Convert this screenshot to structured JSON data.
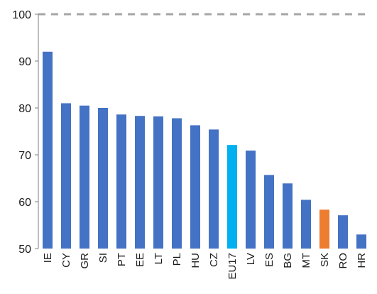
{
  "chart_data": {
    "type": "bar",
    "categories": [
      "IE",
      "CY",
      "GR",
      "SI",
      "PT",
      "EE",
      "LT",
      "PL",
      "HU",
      "CZ",
      "EU17",
      "LV",
      "ES",
      "BG",
      "MT",
      "SK",
      "RO",
      "HR"
    ],
    "values": [
      92,
      81,
      80.5,
      80,
      78.6,
      78.3,
      78.2,
      77.8,
      76.3,
      75.4,
      72.1,
      70.9,
      65.7,
      63.9,
      60.4,
      58.3,
      57.1,
      53
    ],
    "ylim": [
      50,
      100
    ],
    "yticks": [
      50,
      60,
      70,
      80,
      90,
      100
    ],
    "reference_line": {
      "value": 100,
      "style": "dashed",
      "color": "#a6a6a6"
    },
    "colors": {
      "default": "#4472c4",
      "EU17": "#00b0f0",
      "SK": "#ed7d31",
      "axis": "#7f7f7f"
    },
    "grid": false,
    "legend": "none",
    "title": "",
    "xlabel": "",
    "ylabel": ""
  }
}
